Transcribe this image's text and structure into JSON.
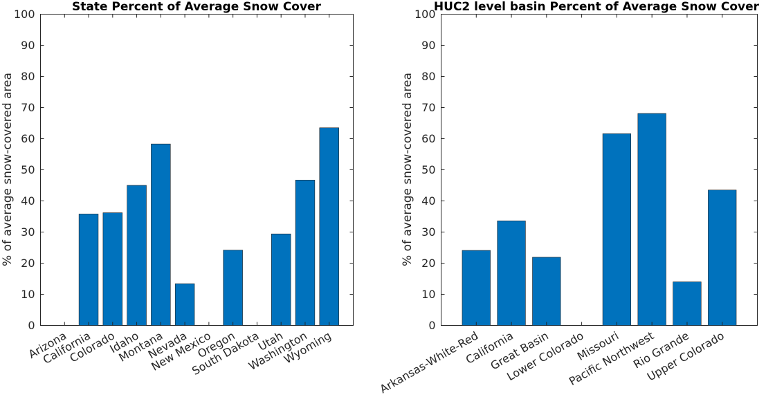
{
  "chart_data": [
    {
      "type": "bar",
      "title": "State Percent of Average Snow Cover",
      "xlabel": "",
      "ylabel": "% of average snow-covered area",
      "ylim": [
        0,
        100
      ],
      "yticks": [
        0,
        10,
        20,
        30,
        40,
        50,
        60,
        70,
        80,
        90,
        100
      ],
      "grid": false,
      "bar_color": "#0072BD",
      "categories": [
        "Arizona",
        "California",
        "Colorado",
        "Idaho",
        "Montana",
        "Nevada",
        "New Mexico",
        "Oregon",
        "South Dakota",
        "Utah",
        "Washington",
        "Wyoming"
      ],
      "values": [
        0,
        35.8,
        36.2,
        45,
        58.3,
        13.4,
        0,
        24.2,
        0,
        29.4,
        46.7,
        63.5
      ]
    },
    {
      "type": "bar",
      "title": "HUC2 level basin Percent of Average Snow Cover",
      "xlabel": "",
      "ylabel": "% of average snow-covered area",
      "ylim": [
        0,
        100
      ],
      "yticks": [
        0,
        10,
        20,
        30,
        40,
        50,
        60,
        70,
        80,
        90,
        100
      ],
      "grid": false,
      "bar_color": "#0072BD",
      "categories": [
        "Arkansas-White-Red",
        "California",
        "Great Basin",
        "Lower Colorado",
        "Missouri",
        "Pacific Northwest",
        "Rio Grande",
        "Upper Colorado"
      ],
      "values": [
        24.1,
        33.6,
        21.9,
        0,
        61.6,
        68.1,
        14,
        43.5
      ]
    }
  ]
}
